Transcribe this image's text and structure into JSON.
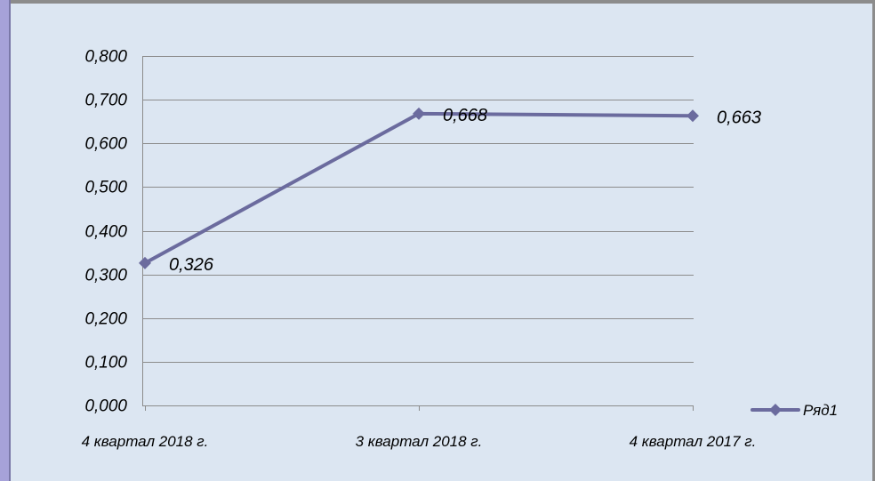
{
  "chart_data": {
    "type": "line",
    "categories": [
      "4  квартал 2018 г.",
      "3 квартал 2018 г.",
      "4 квартал 2017 г."
    ],
    "series": [
      {
        "name": "Ряд1",
        "values": [
          0.326,
          0.668,
          0.663
        ],
        "value_labels": [
          "0,326",
          "0,668",
          "0,663"
        ]
      }
    ],
    "ylim": [
      0,
      0.8
    ],
    "y_ticks": [
      0,
      0.1,
      0.2,
      0.3,
      0.4,
      0.5,
      0.6,
      0.7,
      0.8
    ],
    "y_tick_labels": [
      "0,000",
      "0,100",
      "0,200",
      "0,300",
      "0,400",
      "0,500",
      "0,600",
      "0,700",
      "0,800"
    ],
    "xlabel": "",
    "ylabel": "",
    "title": "",
    "grid": true,
    "legend": "right"
  },
  "colors": {
    "plot_background": "#dce6f2",
    "series_line": "#6b6b9e",
    "gridline": "#8c8c8c",
    "left_accent": "#a6a2d9",
    "border": "#7f7f7f"
  }
}
